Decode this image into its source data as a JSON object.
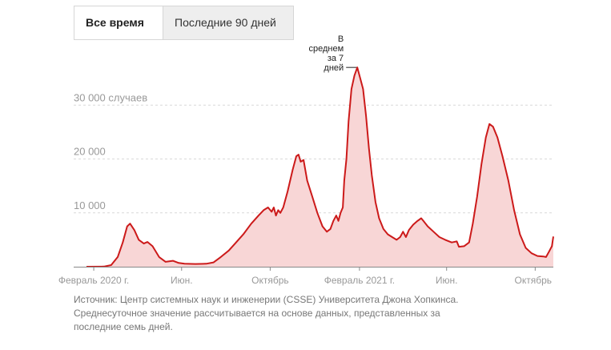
{
  "tabs": [
    {
      "label": "Все время",
      "active": true
    },
    {
      "label": "Последние 90 дней",
      "active": false
    }
  ],
  "colors": {
    "line": "#cc1a1a",
    "fill": "#f8d6d6",
    "grid": "#d9d9d9",
    "axis": "#888888",
    "text": "#999999"
  },
  "chart_data": {
    "type": "area",
    "title": "",
    "xlabel": "",
    "ylabel": "",
    "ylim": [
      0,
      40000
    ],
    "yticks": [
      {
        "value": 10000,
        "label": "10 000"
      },
      {
        "value": 20000,
        "label": "20 000"
      },
      {
        "value": 30000,
        "label": "30 000 случаев"
      }
    ],
    "xticks": [
      {
        "date": "2020-02-01",
        "label": "Февраль 2020 г."
      },
      {
        "date": "2020-06-01",
        "label": "Июн."
      },
      {
        "date": "2020-10-01",
        "label": "Октябрь"
      },
      {
        "date": "2021-02-01",
        "label": "Февраль 2021 г."
      },
      {
        "date": "2021-06-01",
        "label": "Июн."
      },
      {
        "date": "2021-10-01",
        "label": "Октябрь"
      }
    ],
    "xrange": [
      "2020-01-22",
      "2021-10-26"
    ],
    "annotation": {
      "lines": [
        "В",
        "среднем",
        "за 7",
        "дней"
      ],
      "date": "2021-01-29",
      "value": 37000
    },
    "series": [
      {
        "values": [
          [
            "2020-01-22",
            0
          ],
          [
            "2020-02-15",
            30
          ],
          [
            "2020-02-25",
            300
          ],
          [
            "2020-03-05",
            1800
          ],
          [
            "2020-03-12",
            4500
          ],
          [
            "2020-03-18",
            7500
          ],
          [
            "2020-03-22",
            8000
          ],
          [
            "2020-03-28",
            6800
          ],
          [
            "2020-04-03",
            5000
          ],
          [
            "2020-04-10",
            4300
          ],
          [
            "2020-04-15",
            4600
          ],
          [
            "2020-04-22",
            3800
          ],
          [
            "2020-05-01",
            1800
          ],
          [
            "2020-05-10",
            900
          ],
          [
            "2020-05-20",
            1100
          ],
          [
            "2020-05-28",
            700
          ],
          [
            "2020-06-05",
            550
          ],
          [
            "2020-06-20",
            500
          ],
          [
            "2020-07-05",
            550
          ],
          [
            "2020-07-15",
            800
          ],
          [
            "2020-07-25",
            1800
          ],
          [
            "2020-08-05",
            3000
          ],
          [
            "2020-08-15",
            4500
          ],
          [
            "2020-08-25",
            6000
          ],
          [
            "2020-09-05",
            8000
          ],
          [
            "2020-09-15",
            9500
          ],
          [
            "2020-09-22",
            10500
          ],
          [
            "2020-09-28",
            11000
          ],
          [
            "2020-10-03",
            10200
          ],
          [
            "2020-10-06",
            11000
          ],
          [
            "2020-10-09",
            9500
          ],
          [
            "2020-10-12",
            10500
          ],
          [
            "2020-10-15",
            10000
          ],
          [
            "2020-10-19",
            11000
          ],
          [
            "2020-10-25",
            14000
          ],
          [
            "2020-11-01",
            18000
          ],
          [
            "2020-11-06",
            20500
          ],
          [
            "2020-11-09",
            20800
          ],
          [
            "2020-11-12",
            19500
          ],
          [
            "2020-11-16",
            19800
          ],
          [
            "2020-11-21",
            16000
          ],
          [
            "2020-11-28",
            13000
          ],
          [
            "2020-12-05",
            10000
          ],
          [
            "2020-12-12",
            7500
          ],
          [
            "2020-12-18",
            6500
          ],
          [
            "2020-12-23",
            7000
          ],
          [
            "2020-12-27",
            8500
          ],
          [
            "2020-12-31",
            9500
          ],
          [
            "2021-01-03",
            8500
          ],
          [
            "2021-01-06",
            10000
          ],
          [
            "2021-01-09",
            11000
          ],
          [
            "2021-01-11",
            16000
          ],
          [
            "2021-01-14",
            20000
          ],
          [
            "2021-01-17",
            27000
          ],
          [
            "2021-01-21",
            33000
          ],
          [
            "2021-01-25",
            35500
          ],
          [
            "2021-01-29",
            37000
          ],
          [
            "2021-02-02",
            35000
          ],
          [
            "2021-02-06",
            33000
          ],
          [
            "2021-02-10",
            28000
          ],
          [
            "2021-02-14",
            22000
          ],
          [
            "2021-02-18",
            17000
          ],
          [
            "2021-02-23",
            12000
          ],
          [
            "2021-02-28",
            9000
          ],
          [
            "2021-03-06",
            7000
          ],
          [
            "2021-03-12",
            6000
          ],
          [
            "2021-03-18",
            5500
          ],
          [
            "2021-03-24",
            5000
          ],
          [
            "2021-03-29",
            5500
          ],
          [
            "2021-04-02",
            6500
          ],
          [
            "2021-04-06",
            5500
          ],
          [
            "2021-04-10",
            6800
          ],
          [
            "2021-04-16",
            7800
          ],
          [
            "2021-04-22",
            8500
          ],
          [
            "2021-04-27",
            9000
          ],
          [
            "2021-04-30",
            8500
          ],
          [
            "2021-05-06",
            7500
          ],
          [
            "2021-05-14",
            6500
          ],
          [
            "2021-05-22",
            5500
          ],
          [
            "2021-05-30",
            5000
          ],
          [
            "2021-06-08",
            4500
          ],
          [
            "2021-06-15",
            4700
          ],
          [
            "2021-06-18",
            3700
          ],
          [
            "2021-06-25",
            3800
          ],
          [
            "2021-07-02",
            4500
          ],
          [
            "2021-07-07",
            8000
          ],
          [
            "2021-07-13",
            13000
          ],
          [
            "2021-07-19",
            19000
          ],
          [
            "2021-07-25",
            24000
          ],
          [
            "2021-07-30",
            26500
          ],
          [
            "2021-08-04",
            26000
          ],
          [
            "2021-08-10",
            24000
          ],
          [
            "2021-08-17",
            20500
          ],
          [
            "2021-08-25",
            16000
          ],
          [
            "2021-09-02",
            10500
          ],
          [
            "2021-09-10",
            6000
          ],
          [
            "2021-09-18",
            3500
          ],
          [
            "2021-09-26",
            2500
          ],
          [
            "2021-10-04",
            2000
          ],
          [
            "2021-10-12",
            1900
          ],
          [
            "2021-10-16",
            1800
          ],
          [
            "2021-10-20",
            2800
          ],
          [
            "2021-10-24",
            3800
          ],
          [
            "2021-10-26",
            5600
          ]
        ]
      }
    ]
  },
  "footnote": {
    "source": "Источник: Центр системных наук и инженерии (CSSE) Университета Джона Хопкинса.",
    "note": "Среднесуточное значение рассчитывается на основе данных, представленных за последние семь дней."
  }
}
